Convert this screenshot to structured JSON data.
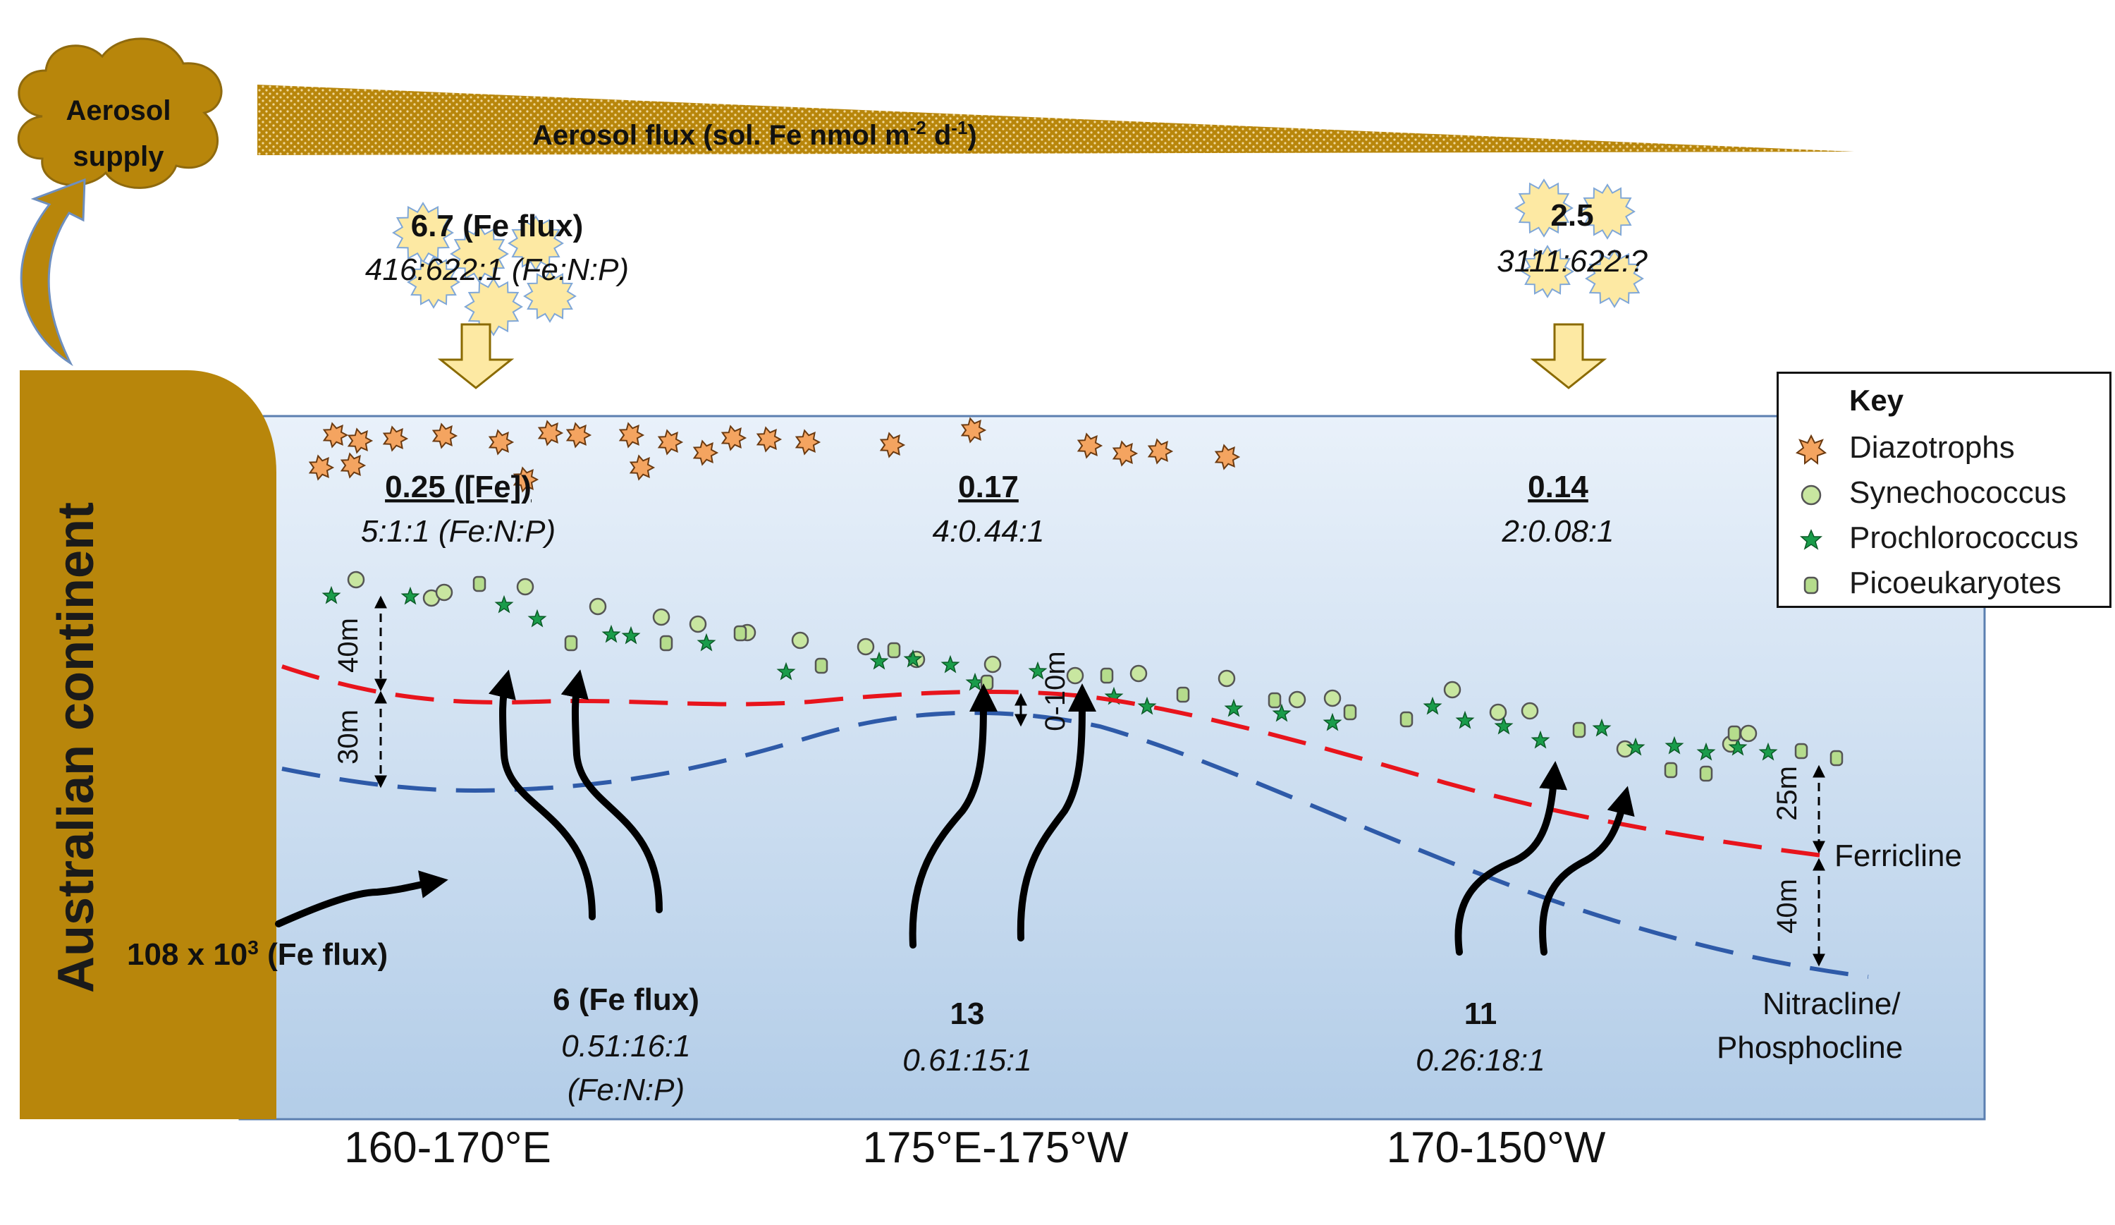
{
  "aerosol": {
    "supply_line1": "Aerosol",
    "supply_line2": "supply",
    "flux_label": "Aerosol flux (sol. Fe nmol m",
    "flux_sup": "-2",
    "flux_unit": " d",
    "flux_sup2": "-1",
    "flux_close": ")"
  },
  "continent": {
    "label": "Australian continent"
  },
  "west_input": {
    "value": "6.7 (Fe flux)",
    "ratio": "416:622:1 (Fe:N:P)"
  },
  "east_input": {
    "value": "2.5",
    "ratio": "3111:622:?"
  },
  "surface": [
    {
      "value": "0.25 ([Fe])",
      "ratio": "5:1:1 (Fe:N:P)"
    },
    {
      "value": "0.17",
      "ratio": "4:0.44:1"
    },
    {
      "value": "0.14",
      "ratio": "2:0.08:1"
    }
  ],
  "lateral": {
    "value": "108 x 10",
    "sup": "3",
    "suffix": " (Fe flux)"
  },
  "upwelling": [
    {
      "value": "6 (Fe flux)",
      "ratio": "0.51:16:1",
      "ratio2": "(Fe:N:P)"
    },
    {
      "value": "13",
      "ratio": "0.61:15:1"
    },
    {
      "value": "11",
      "ratio": "0.26:18:1"
    }
  ],
  "depths": {
    "d40a": "40m",
    "d30": "30m",
    "d0_10": "0-10m",
    "d25": "25m",
    "d40b": "40m"
  },
  "lines": {
    "ferricline": "Ferricline",
    "nitracline1": "Nitracline/",
    "nitracline2": "Phosphocline"
  },
  "regions": [
    "160-170°E",
    "175°E-175°W",
    "170-150°W"
  ],
  "key": {
    "title": "Key",
    "items": [
      "Diazotrophs",
      "Synechococcus",
      "Prochlorococcus",
      "Picoeukaryotes"
    ]
  },
  "colors": {
    "continent": "#b8860b",
    "ferricline": "#e8141c",
    "nitracline": "#2e5aa8",
    "diazotroph": "#f4a460",
    "synechococcus": "#c8e6a0",
    "prochlorococcus": "#1a9c4a",
    "picoeukaryote": "#b5dc8c",
    "star": "#fde9a3"
  }
}
